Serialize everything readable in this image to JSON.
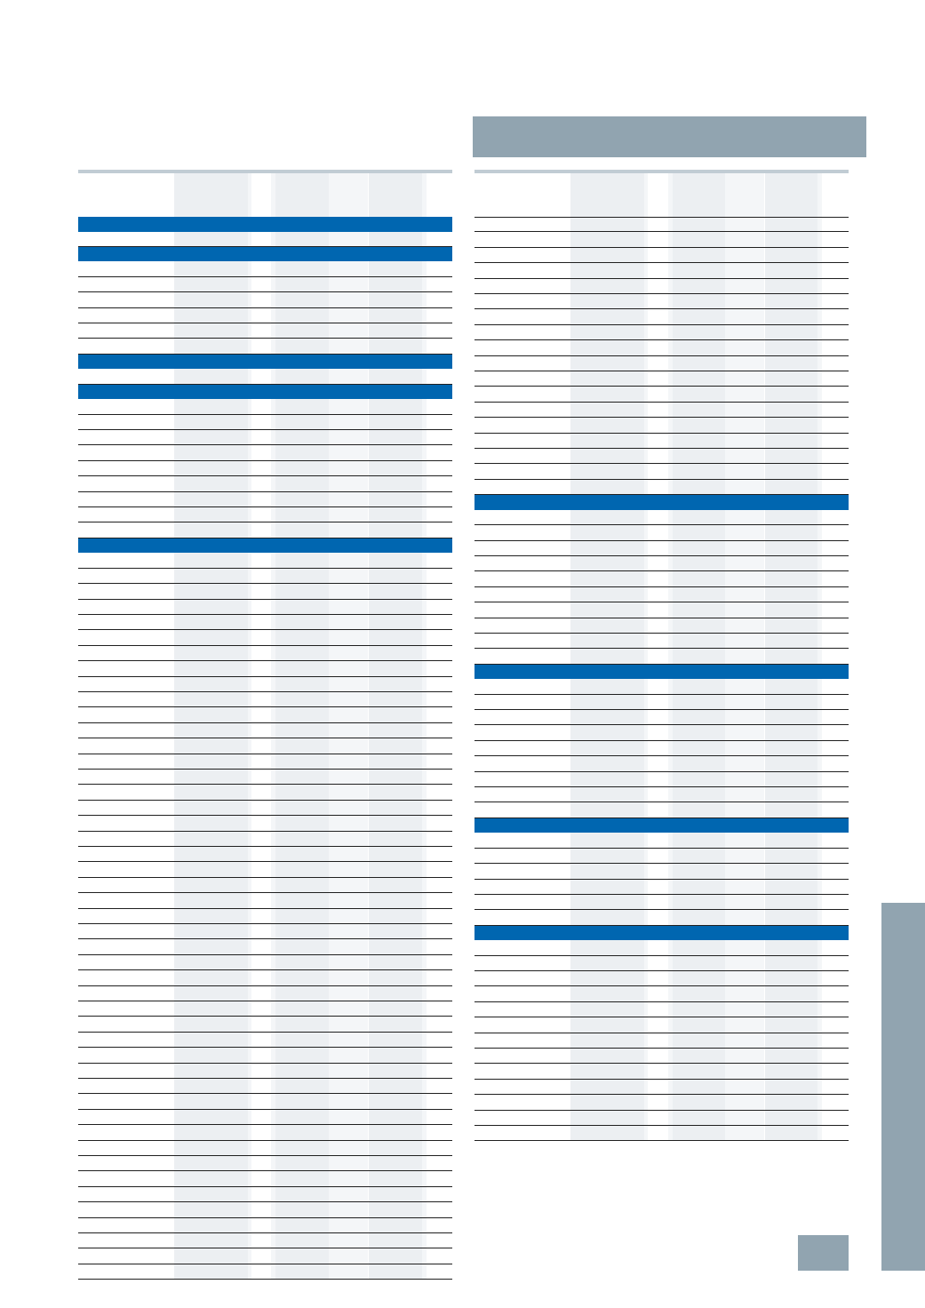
{
  "page": {
    "background": "#ffffff",
    "header_bar_color": "#91a4b0",
    "side_tab_color": "#91a4b0",
    "page_number_box_color": "#91a4b0",
    "section_band_color": "#0066b0",
    "shaded_column_color": "#eceff2",
    "rule_color": "#1f1f1f",
    "top_rule_color": "#c1ccd4"
  },
  "tables": [
    {
      "name": "left-table",
      "column_count": 7,
      "shaded_columns": [
        1,
        3,
        5
      ],
      "rows": [
        "S",
        "R",
        "S",
        "R",
        "R",
        "R",
        "R",
        "R",
        "R",
        "S",
        "R",
        "S",
        "R",
        "R",
        "R",
        "R",
        "R",
        "R",
        "R",
        "R",
        "R",
        "S",
        "R",
        "R",
        "R",
        "R",
        "R",
        "R",
        "R",
        "R",
        "R",
        "R",
        "R",
        "R",
        "R",
        "R",
        "R",
        "R",
        "R",
        "R",
        "R",
        "R",
        "R",
        "R",
        "R",
        "R",
        "R",
        "R",
        "R",
        "R",
        "R",
        "R",
        "R",
        "R",
        "R",
        "R",
        "R",
        "R",
        "R",
        "R",
        "R",
        "R",
        "R",
        "R",
        "R",
        "R",
        "R",
        "R",
        "R"
      ]
    },
    {
      "name": "right-table",
      "column_count": 7,
      "shaded_columns": [
        1,
        3,
        5
      ],
      "rows": [
        "R",
        "R",
        "R",
        "R",
        "R",
        "R",
        "R",
        "R",
        "R",
        "R",
        "R",
        "R",
        "R",
        "R",
        "R",
        "R",
        "R",
        "R",
        "S",
        "R",
        "R",
        "R",
        "R",
        "R",
        "R",
        "R",
        "R",
        "R",
        "R",
        "S",
        "R",
        "R",
        "R",
        "R",
        "R",
        "R",
        "R",
        "R",
        "R",
        "S",
        "R",
        "R",
        "R",
        "R",
        "R",
        "R",
        "S",
        "R",
        "R",
        "R",
        "R",
        "R",
        "R",
        "R",
        "R",
        "R",
        "R",
        "R",
        "R",
        "R"
      ]
    }
  ]
}
